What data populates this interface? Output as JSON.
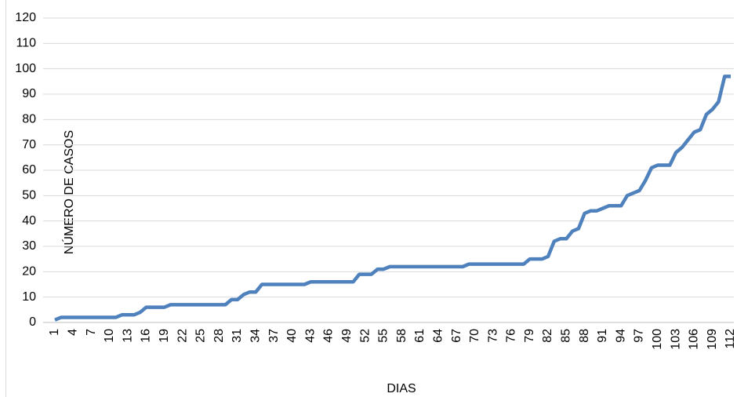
{
  "chart_data": {
    "type": "line",
    "x_label": "DIAS",
    "y_label": "NÚMERO DE CASOS",
    "categories": [
      1,
      null,
      null,
      4,
      null,
      null,
      7,
      null,
      null,
      10,
      null,
      null,
      13,
      null,
      null,
      16,
      null,
      null,
      19,
      null,
      null,
      22,
      null,
      null,
      25,
      null,
      null,
      28,
      null,
      null,
      31,
      null,
      null,
      34,
      null,
      null,
      37,
      null,
      null,
      40,
      null,
      null,
      43,
      null,
      null,
      46,
      null,
      null,
      49,
      null,
      null,
      52,
      null,
      null,
      55,
      null,
      null,
      58,
      null,
      null,
      61,
      null,
      null,
      64,
      null,
      null,
      67,
      null,
      null,
      70,
      null,
      null,
      73,
      null,
      null,
      76,
      null,
      null,
      79,
      null,
      null,
      82,
      null,
      null,
      85,
      null,
      null,
      88,
      null,
      null,
      91,
      null,
      null,
      94,
      null,
      null,
      97,
      null,
      null,
      100,
      null,
      null,
      103,
      null,
      null,
      106,
      null,
      null,
      109,
      null,
      null,
      112
    ],
    "values": [
      1,
      2,
      2,
      2,
      2,
      2,
      2,
      2,
      2,
      2,
      2,
      3,
      3,
      3,
      4,
      6,
      6,
      6,
      6,
      7,
      7,
      7,
      7,
      7,
      7,
      7,
      7,
      7,
      7,
      9,
      9,
      11,
      12,
      12,
      15,
      15,
      15,
      15,
      15,
      15,
      15,
      15,
      16,
      16,
      16,
      16,
      16,
      16,
      16,
      16,
      19,
      19,
      19,
      21,
      21,
      22,
      22,
      22,
      22,
      22,
      22,
      22,
      22,
      22,
      22,
      22,
      22,
      22,
      23,
      23,
      23,
      23,
      23,
      23,
      23,
      23,
      23,
      23,
      25,
      25,
      25,
      26,
      32,
      33,
      33,
      36,
      37,
      43,
      44,
      44,
      45,
      46,
      46,
      46,
      50,
      51,
      52,
      56,
      61,
      62,
      62,
      62,
      67,
      69,
      72,
      75,
      76,
      82,
      84,
      87,
      97,
      97
    ],
    "color": "#4f81bd",
    "ylim": [
      0,
      120
    ],
    "yticks": [
      0,
      10,
      20,
      30,
      40,
      50,
      60,
      70,
      80,
      90,
      100,
      110,
      120
    ],
    "grid": true
  }
}
